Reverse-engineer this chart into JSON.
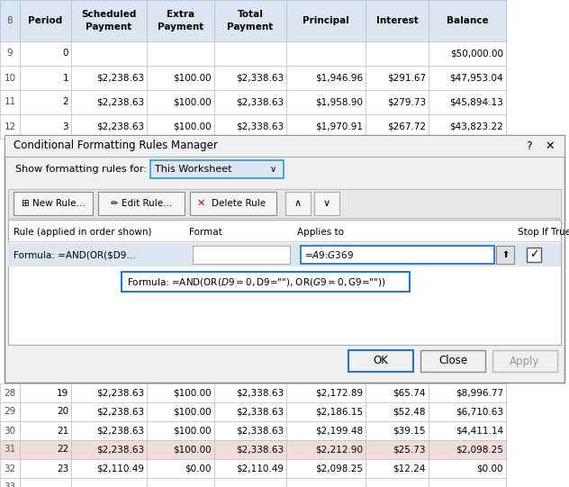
{
  "spreadsheet_bg": "#ffffff",
  "header_bg": "#dce6f1",
  "row_bg_normal": "#ffffff",
  "row_highlighted": "#f2dcdb",
  "grid_color": "#c0c0c0",
  "text_color": "#000000",
  "dialog_bg": "#f0f0f0",
  "dialog_border": "#999999",
  "dialog_title": "Conditional Formatting Rules Manager",
  "show_label": "Show formatting rules for:",
  "dropdown_text": "This Worksheet",
  "top_rows": [
    [
      "8",
      "",
      "Scheduled\nPayment",
      "Extra\nPayment",
      "Total\nPayment",
      "Principal",
      "Interest",
      "Balance"
    ],
    [
      "9",
      "0",
      "",
      "",
      "",
      "",
      "",
      "$50,000.00"
    ],
    [
      "10",
      "1",
      "$2,238.63",
      "$100.00",
      "$2,338.63",
      "$1,946.96",
      "$291.67",
      "$47,953.04"
    ],
    [
      "11",
      "2",
      "$2,238.63",
      "$100.00",
      "$2,338.63",
      "$1,958.90",
      "$279.73",
      "$45,894.13"
    ],
    [
      "12",
      "3",
      "$2,238.63",
      "$100.00",
      "$2,338.63",
      "$1,970.91",
      "$267.72",
      "$43,823.22"
    ]
  ],
  "bottom_rows": [
    [
      "28",
      "19",
      "$2,238.63",
      "$100.00",
      "$2,338.63",
      "$2,172.89",
      "$65.74",
      "$8,996.77"
    ],
    [
      "29",
      "20",
      "$2,238.63",
      "$100.00",
      "$2,338.63",
      "$2,186.15",
      "$52.48",
      "$6,710.63"
    ],
    [
      "30",
      "21",
      "$2,238.63",
      "$100.00",
      "$2,338.63",
      "$2,199.48",
      "$39.15",
      "$4,411.14"
    ],
    [
      "31",
      "22",
      "$2,238.63",
      "$100.00",
      "$2,338.63",
      "$2,212.90",
      "$25.73",
      "$2,098.25"
    ],
    [
      "32",
      "23",
      "$2,110.49",
      "$0.00",
      "$2,110.49",
      "$2,098.25",
      "$12.24",
      "$0.00"
    ],
    [
      "33",
      "",
      "",
      "",
      "",
      "",
      "",
      ""
    ]
  ],
  "rule_text": "Formula: =AND(OR($D9...",
  "applies_to": "=$A$9:$G$369",
  "formula_full": "Formula: =AND(OR($D9=0, $D9=\"\"), OR($G9=0, $G9=\"\"))",
  "button_ok": "OK",
  "button_close": "Close",
  "button_apply": "Apply",
  "col_rule": "Rule (applied in order shown)",
  "col_format": "Format",
  "col_applies": "Applies to",
  "col_stop": "Stop If True"
}
